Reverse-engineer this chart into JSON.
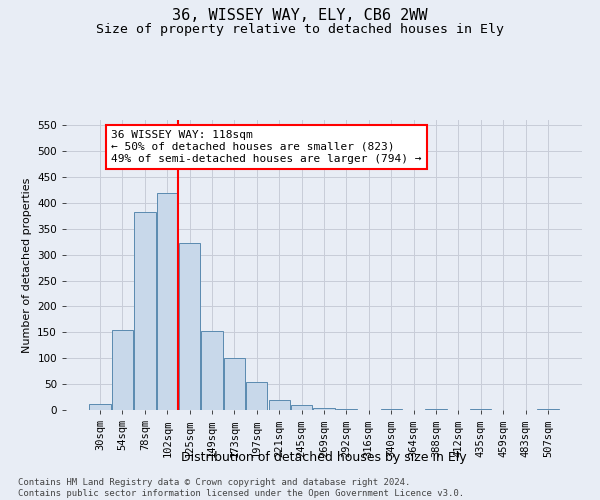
{
  "title": "36, WISSEY WAY, ELY, CB6 2WW",
  "subtitle": "Size of property relative to detached houses in Ely",
  "xlabel": "Distribution of detached houses by size in Ely",
  "ylabel": "Number of detached properties",
  "bar_values": [
    12,
    155,
    382,
    420,
    322,
    152,
    100,
    55,
    19,
    9,
    4,
    1,
    0,
    2,
    0,
    1,
    0,
    2,
    0,
    0,
    2
  ],
  "categories": [
    "30sqm",
    "54sqm",
    "78sqm",
    "102sqm",
    "125sqm",
    "149sqm",
    "173sqm",
    "197sqm",
    "221sqm",
    "245sqm",
    "269sqm",
    "292sqm",
    "316sqm",
    "340sqm",
    "364sqm",
    "388sqm",
    "412sqm",
    "435sqm",
    "459sqm",
    "483sqm",
    "507sqm"
  ],
  "bar_color": "#c8d8ea",
  "bar_edge_color": "#5a8ab0",
  "vline_color": "red",
  "annotation_text": "36 WISSEY WAY: 118sqm\n← 50% of detached houses are smaller (823)\n49% of semi-detached houses are larger (794) →",
  "annotation_box_color": "white",
  "annotation_box_edge": "red",
  "ylim": [
    0,
    560
  ],
  "yticks": [
    0,
    50,
    100,
    150,
    200,
    250,
    300,
    350,
    400,
    450,
    500,
    550
  ],
  "grid_color": "#c8ccd8",
  "bg_color": "#e8edf5",
  "footer": "Contains HM Land Registry data © Crown copyright and database right 2024.\nContains public sector information licensed under the Open Government Licence v3.0.",
  "title_fontsize": 11,
  "subtitle_fontsize": 9.5,
  "xlabel_fontsize": 9,
  "ylabel_fontsize": 8,
  "tick_fontsize": 7.5,
  "annotation_fontsize": 8,
  "footer_fontsize": 6.5
}
